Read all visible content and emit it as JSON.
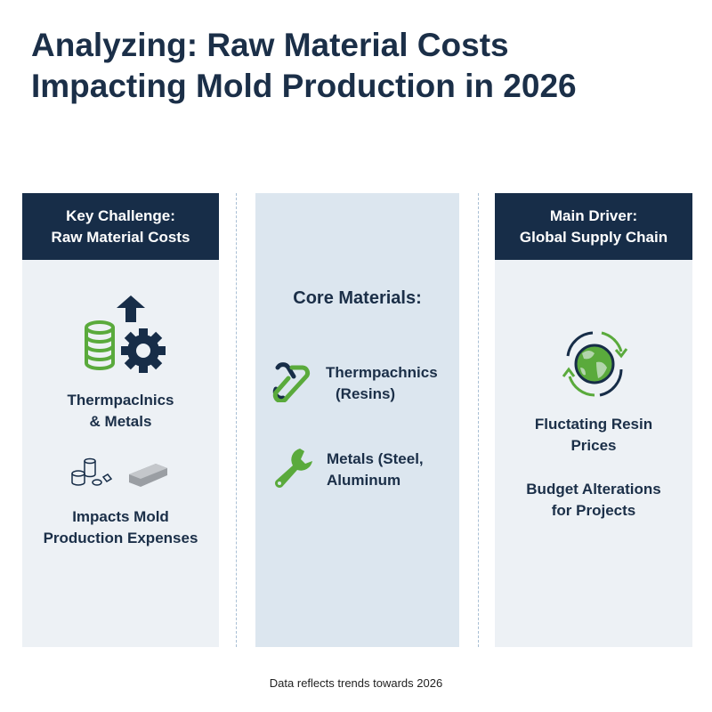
{
  "title": "Analyzing: Raw Material Costs Impacting Mold Production in 2026",
  "left": {
    "header_line1": "Key Challenge:",
    "header_line2": "Raw Material Costs",
    "icon1": "coins-gear-arrow-up-icon",
    "text1_line1": "Thermpaclnics",
    "text1_line2": "& Metals",
    "icon2": "materials-ingot-icon",
    "text2_line1": "Impacts Mold",
    "text2_line2": "Production Expenses"
  },
  "middle": {
    "heading": "Core Materials:",
    "items": [
      {
        "icon": "chain-link-icon",
        "line1": "Thermpachnics",
        "line2": "(Resins)"
      },
      {
        "icon": "wrench-icon",
        "line1": "Metals (Steel,",
        "line2": "Aluminum"
      }
    ]
  },
  "right": {
    "header_line1": "Main Driver:",
    "header_line2": "Global Supply Chain",
    "icon": "globe-cycle-icon",
    "text1_line1": "Fluctating Resin",
    "text1_line2": "Prices",
    "text2_line1": "Budget Alterations",
    "text2_line2": "for Projects"
  },
  "footer": "Data reflects trends towards 2026",
  "colors": {
    "navy": "#172d48",
    "green": "#5aaa3c",
    "panel": "#edf1f5",
    "panel_mid": "#dce6ef"
  }
}
